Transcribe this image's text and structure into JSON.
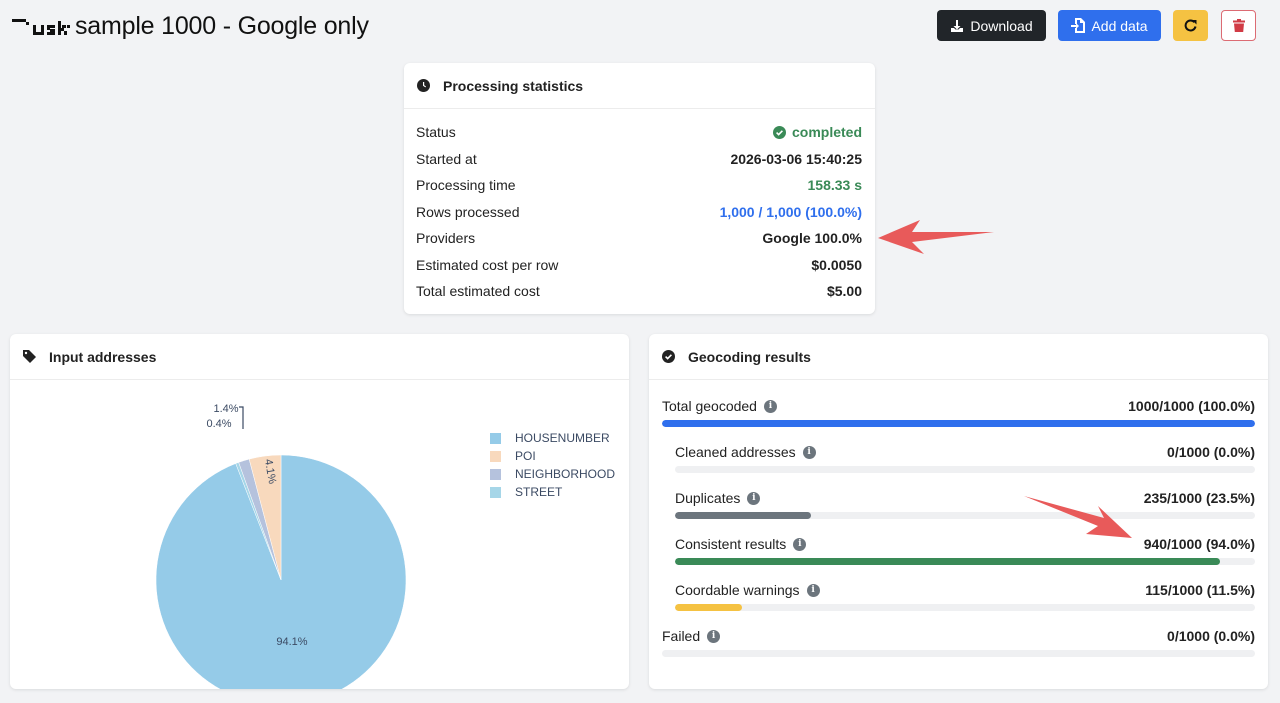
{
  "header": {
    "logo_text": "usk",
    "title": "sample 1000 - Google only",
    "buttons": {
      "download": "Download",
      "add_data": "Add data",
      "refresh_icon": "refresh-icon",
      "delete_icon": "trash-icon"
    }
  },
  "processing_statistics": {
    "title": "Processing statistics",
    "icon": "clock-icon",
    "rows": [
      {
        "label": "Status",
        "value": "completed",
        "color": "#3a8a57",
        "icon": "check-circle-icon"
      },
      {
        "label": "Started at",
        "value": "2026-03-06 15:40:25",
        "color": "#222222"
      },
      {
        "label": "Processing time",
        "value": "158.33 s",
        "color": "#3a8a57"
      },
      {
        "label": "Rows processed",
        "value": "1,000 / 1,000 (100.0%)",
        "color": "#2f6fed"
      },
      {
        "label": "Providers",
        "value": "Google 100.0%",
        "color": "#222222"
      },
      {
        "label": "Estimated cost per row",
        "value": "$0.0050",
        "color": "#222222"
      },
      {
        "label": "Total estimated cost",
        "value": "$5.00",
        "color": "#222222"
      }
    ]
  },
  "input_addresses": {
    "title": "Input addresses",
    "icon": "tag-icon"
  },
  "chart_data": {
    "type": "pie",
    "title": "Input addresses",
    "categories": [
      "HOUSENUMBER",
      "STREET",
      "NEIGHBORHOOD",
      "POI"
    ],
    "values": [
      94.1,
      0.4,
      1.4,
      4.1
    ],
    "labels": [
      "94.1%",
      "0.4%",
      "1.4%",
      "4.1%"
    ],
    "colors": [
      "#95cbe8",
      "#a6d6e8",
      "#b5c2dd",
      "#f8d9bd"
    ],
    "legend": [
      {
        "label": "HOUSENUMBER",
        "color": "#95cbe8"
      },
      {
        "label": "POI",
        "color": "#f8d9bd"
      },
      {
        "label": "NEIGHBORHOOD",
        "color": "#b5c2dd"
      },
      {
        "label": "STREET",
        "color": "#a6d6e8"
      }
    ],
    "legend_position": "right"
  },
  "geocoding_results": {
    "title": "Geocoding results",
    "icon": "check-circle-icon",
    "rows": [
      {
        "label": "Total geocoded",
        "value": "1000/1000 (100.0%)",
        "percent": 100.0,
        "color": "#2f6fed",
        "indent": false
      },
      {
        "label": "Cleaned addresses",
        "value": "0/1000 (0.0%)",
        "percent": 0.0,
        "color": "#6c757d",
        "indent": true
      },
      {
        "label": "Duplicates",
        "value": "235/1000 (23.5%)",
        "percent": 23.5,
        "color": "#6c757d",
        "indent": true
      },
      {
        "label": "Consistent results",
        "value": "940/1000 (94.0%)",
        "percent": 94.0,
        "color": "#3a8a57",
        "indent": true
      },
      {
        "label": "Coordable warnings",
        "value": "115/1000 (11.5%)",
        "percent": 11.5,
        "color": "#f5c242",
        "indent": true
      },
      {
        "label": "Failed",
        "value": "0/1000 (0.0%)",
        "percent": 0.0,
        "color": "#dc3545",
        "indent": false
      }
    ]
  },
  "annotations": {
    "arrow_color": "#e85a5a"
  }
}
